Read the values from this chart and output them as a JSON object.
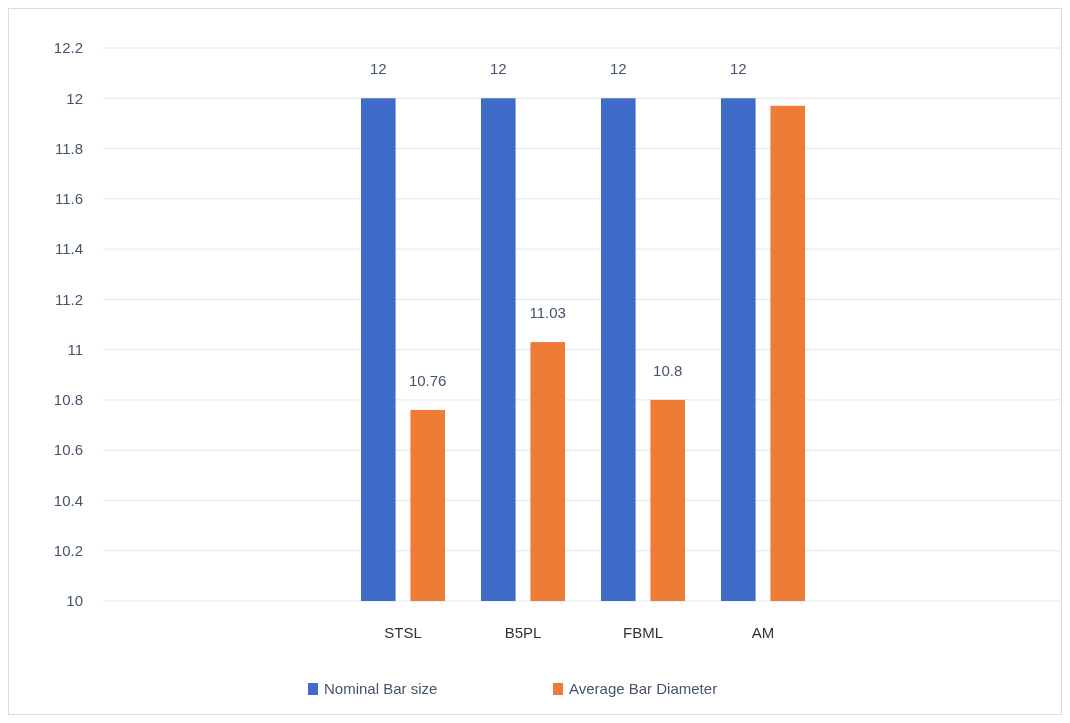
{
  "chart_data": {
    "type": "bar",
    "categories": [
      null,
      null,
      "STSL",
      "B5PL",
      "FBML",
      "AM",
      null,
      null
    ],
    "series": [
      {
        "name": "Nominal Bar size",
        "color": "#3f6cc9",
        "values": [
          null,
          null,
          12,
          12,
          12,
          12,
          null,
          null
        ],
        "value_labels": [
          null,
          null,
          "12",
          "12",
          "12",
          "12",
          null,
          null
        ]
      },
      {
        "name": "Average Bar Diameter",
        "color": "#ee7b36",
        "values": [
          null,
          null,
          10.76,
          11.03,
          10.8,
          11.97,
          null,
          null
        ],
        "value_labels": [
          null,
          null,
          "10.76",
          "11.03",
          "10.8",
          null,
          null,
          null
        ]
      }
    ],
    "ylim": [
      10,
      12.2
    ],
    "yticks": [
      10,
      10.2,
      10.4,
      10.6,
      10.8,
      11,
      11.2,
      11.4,
      11.6,
      11.8,
      12,
      12.2
    ],
    "grid": "y",
    "legend": "bottom"
  }
}
